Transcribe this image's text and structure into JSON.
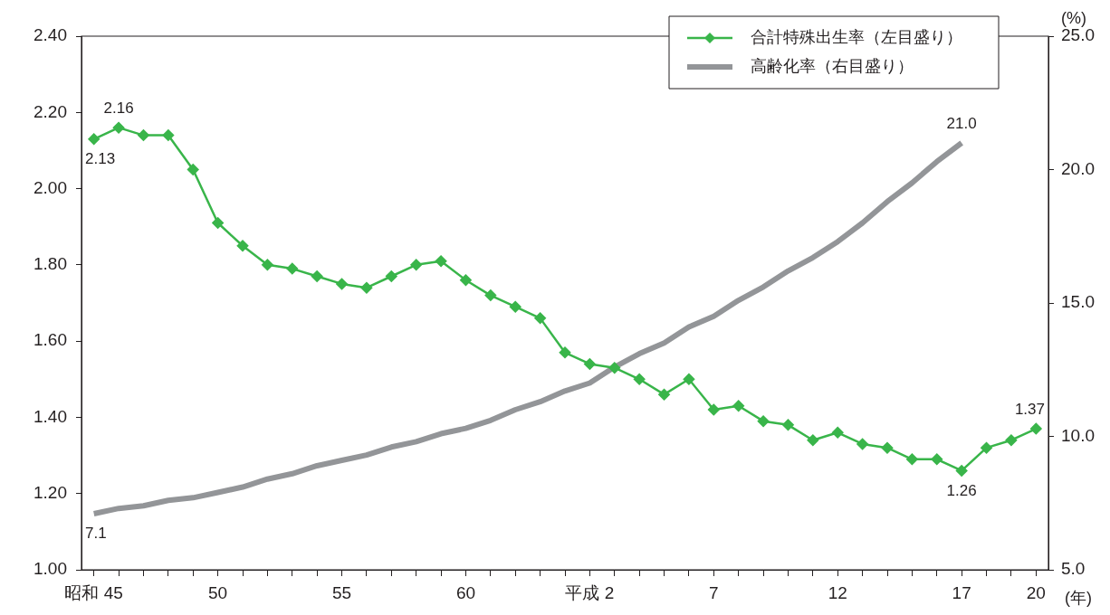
{
  "chart_data": {
    "type": "line",
    "xlabel": "(年)",
    "y2label": "(%)",
    "categories": [
      "昭和 45",
      null,
      null,
      null,
      null,
      "50",
      null,
      null,
      null,
      null,
      "55",
      null,
      null,
      null,
      null,
      "60",
      null,
      null,
      null,
      null,
      "平成 2",
      null,
      null,
      null,
      null,
      "7",
      null,
      null,
      null,
      null,
      "12",
      null,
      null,
      null,
      null,
      "17",
      null,
      null,
      "20"
    ],
    "series": [
      {
        "name": "合計特殊出生率（左目盛り）",
        "color": "#39b54a",
        "marker": "diamond",
        "values": [
          2.13,
          2.16,
          2.14,
          2.14,
          2.05,
          1.91,
          1.85,
          1.8,
          1.79,
          1.77,
          1.75,
          1.74,
          1.77,
          1.8,
          1.81,
          1.76,
          1.72,
          1.69,
          1.66,
          1.57,
          1.54,
          1.53,
          1.5,
          1.46,
          1.5,
          1.42,
          1.43,
          1.39,
          1.38,
          1.34,
          1.36,
          1.33,
          1.32,
          1.29,
          1.29,
          1.26,
          1.32,
          1.34,
          1.37
        ],
        "value_labels": [
          "2.13",
          "2.16",
          null,
          null,
          null,
          null,
          null,
          null,
          null,
          null,
          null,
          null,
          null,
          null,
          null,
          null,
          null,
          null,
          null,
          null,
          null,
          null,
          null,
          null,
          null,
          null,
          null,
          null,
          null,
          null,
          null,
          null,
          null,
          null,
          null,
          "1.26",
          null,
          null,
          "1.37"
        ]
      },
      {
        "name": "高齢化率（右目盛り）",
        "color": "#939598",
        "marker": "none",
        "axis": "y2",
        "values": [
          7.1,
          7.3,
          7.4,
          7.6,
          7.7,
          7.9,
          8.1,
          8.4,
          8.6,
          8.9,
          9.1,
          9.3,
          9.6,
          9.8,
          10.1,
          10.3,
          10.6,
          11.0,
          11.3,
          11.7,
          12.0,
          12.6,
          13.1,
          13.5,
          14.1,
          14.5,
          15.1,
          15.6,
          16.2,
          16.7,
          17.3,
          18.0,
          18.8,
          19.5,
          20.3,
          21.0,
          null,
          null,
          null
        ],
        "value_labels": [
          "7.1",
          null,
          null,
          null,
          null,
          null,
          null,
          null,
          null,
          null,
          null,
          null,
          null,
          null,
          null,
          null,
          null,
          null,
          null,
          null,
          null,
          null,
          null,
          null,
          null,
          null,
          null,
          null,
          null,
          null,
          null,
          null,
          null,
          null,
          null,
          "21.0",
          null,
          null,
          null
        ]
      }
    ],
    "ylim": [
      1.0,
      2.4
    ],
    "yticks": [
      {
        "value": 1.0,
        "label": "1.00"
      },
      {
        "value": 1.2,
        "label": "1.20"
      },
      {
        "value": 1.4,
        "label": "1.40"
      },
      {
        "value": 1.6,
        "label": "1.60"
      },
      {
        "value": 1.8,
        "label": "1.80"
      },
      {
        "value": 2.0,
        "label": "2.00"
      },
      {
        "value": 2.2,
        "label": "2.20"
      },
      {
        "value": 2.4,
        "label": "2.40"
      }
    ],
    "y2lim": [
      5.0,
      25.0
    ],
    "y2ticks": [
      {
        "value": 5,
        "label": "5.0"
      },
      {
        "value": 10,
        "label": "10.0"
      },
      {
        "value": 15,
        "label": "15.0"
      },
      {
        "value": 20,
        "label": "20.0"
      },
      {
        "value": 25,
        "label": "25.0"
      }
    ],
    "grid": false,
    "legend": "top right"
  }
}
